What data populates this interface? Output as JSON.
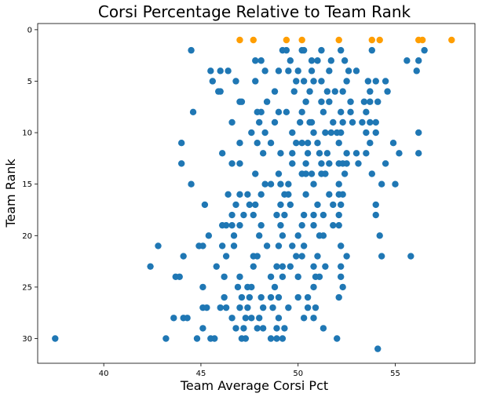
{
  "chart_data": {
    "type": "scatter",
    "title": "Corsi Percentage Relative to Team Rank",
    "xlabel": "Team Average Corsi Pct",
    "ylabel": "Team Rank",
    "xlim": [
      36.6,
      59.1
    ],
    "ylim": [
      -0.6,
      32.4
    ],
    "y_inverted": true,
    "xticks": [
      40,
      45,
      50,
      55
    ],
    "yticks": [
      0,
      5,
      10,
      15,
      20,
      25,
      30
    ],
    "grid": false,
    "legend": "none",
    "colors": {
      "rank_1": "#ff9e00",
      "others": "#1f77b4"
    },
    "series": [
      {
        "color": "#ff9e00",
        "points": [
          [
            47.0,
            1
          ],
          [
            47.7,
            1
          ],
          [
            49.4,
            1
          ],
          [
            50.2,
            1
          ],
          [
            52.1,
            1
          ],
          [
            53.8,
            1
          ],
          [
            54.2,
            1
          ],
          [
            56.2,
            1
          ],
          [
            56.4,
            1
          ],
          [
            57.9,
            1
          ]
        ]
      },
      {
        "color": "#1f77b4",
        "points": [
          [
            44.5,
            2
          ],
          [
            49.2,
            2
          ],
          [
            49.4,
            2
          ],
          [
            50.2,
            2
          ],
          [
            52.2,
            2
          ],
          [
            53.8,
            2
          ],
          [
            56.5,
            2
          ],
          [
            50.3,
            2
          ],
          [
            51.2,
            2
          ],
          [
            47.8,
            3
          ],
          [
            49.6,
            3
          ],
          [
            51.0,
            3
          ],
          [
            51.7,
            3
          ],
          [
            52.4,
            3
          ],
          [
            55.6,
            3
          ],
          [
            56.2,
            3
          ],
          [
            48.1,
            3
          ],
          [
            50.7,
            3
          ],
          [
            45.5,
            4
          ],
          [
            46.0,
            4
          ],
          [
            46.4,
            4
          ],
          [
            48.3,
            4
          ],
          [
            49.0,
            4
          ],
          [
            49.5,
            4
          ],
          [
            50.0,
            4
          ],
          [
            50.7,
            4
          ],
          [
            51.6,
            4
          ],
          [
            52.6,
            4
          ],
          [
            53.0,
            4
          ],
          [
            56.1,
            4
          ],
          [
            46.8,
            5
          ],
          [
            47.8,
            5
          ],
          [
            49.9,
            5
          ],
          [
            50.3,
            5
          ],
          [
            50.8,
            5
          ],
          [
            51.2,
            5
          ],
          [
            52.5,
            5
          ],
          [
            53.6,
            5
          ],
          [
            54.0,
            5
          ],
          [
            54.5,
            5
          ],
          [
            45.6,
            5
          ],
          [
            45.9,
            6
          ],
          [
            46.0,
            6
          ],
          [
            48.8,
            6
          ],
          [
            49.8,
            6
          ],
          [
            50.6,
            6
          ],
          [
            51.5,
            6
          ],
          [
            51.9,
            6
          ],
          [
            52.3,
            6
          ],
          [
            53.7,
            6
          ],
          [
            54.6,
            6
          ],
          [
            47.0,
            7
          ],
          [
            47.1,
            7
          ],
          [
            48.4,
            7
          ],
          [
            50.4,
            7
          ],
          [
            51.6,
            7
          ],
          [
            52.7,
            7
          ],
          [
            53.4,
            7
          ],
          [
            53.7,
            7
          ],
          [
            54.1,
            7
          ],
          [
            51.2,
            7
          ],
          [
            44.6,
            8
          ],
          [
            47.9,
            8
          ],
          [
            48.1,
            8
          ],
          [
            49.0,
            8
          ],
          [
            49.4,
            8
          ],
          [
            50.2,
            8
          ],
          [
            51.3,
            8
          ],
          [
            52.2,
            8
          ],
          [
            53.5,
            8
          ],
          [
            52.7,
            8
          ],
          [
            46.6,
            9
          ],
          [
            48.0,
            9
          ],
          [
            48.8,
            9
          ],
          [
            50.1,
            9
          ],
          [
            50.7,
            9
          ],
          [
            51.8,
            9
          ],
          [
            52.3,
            9
          ],
          [
            52.8,
            9
          ],
          [
            53.3,
            9
          ],
          [
            53.7,
            9
          ],
          [
            54.0,
            9
          ],
          [
            50.6,
            9
          ],
          [
            48.3,
            10
          ],
          [
            49.7,
            10
          ],
          [
            50.8,
            10
          ],
          [
            51.4,
            10
          ],
          [
            51.7,
            10
          ],
          [
            52.0,
            10
          ],
          [
            52.2,
            10
          ],
          [
            53.5,
            10
          ],
          [
            54.0,
            10
          ],
          [
            56.2,
            10
          ],
          [
            47.6,
            10
          ],
          [
            44.0,
            11
          ],
          [
            47.0,
            11
          ],
          [
            47.9,
            11
          ],
          [
            48.6,
            11
          ],
          [
            49.9,
            11
          ],
          [
            50.2,
            11
          ],
          [
            51.0,
            11
          ],
          [
            52.1,
            11
          ],
          [
            53.7,
            11
          ],
          [
            54.9,
            11
          ],
          [
            50.5,
            11
          ],
          [
            46.1,
            12
          ],
          [
            48.2,
            12
          ],
          [
            49.1,
            12
          ],
          [
            49.7,
            12
          ],
          [
            50.5,
            12
          ],
          [
            51.1,
            12
          ],
          [
            51.5,
            12
          ],
          [
            52.5,
            12
          ],
          [
            53.0,
            12
          ],
          [
            53.5,
            12
          ],
          [
            55.2,
            12
          ],
          [
            56.2,
            12
          ],
          [
            44.0,
            13
          ],
          [
            46.6,
            13
          ],
          [
            47.0,
            13
          ],
          [
            49.7,
            13
          ],
          [
            50.4,
            13
          ],
          [
            51.2,
            13
          ],
          [
            51.6,
            13
          ],
          [
            52.1,
            13
          ],
          [
            52.3,
            13
          ],
          [
            52.5,
            13
          ],
          [
            53.1,
            13
          ],
          [
            54.5,
            13
          ],
          [
            47.8,
            14
          ],
          [
            49.0,
            14
          ],
          [
            50.2,
            14
          ],
          [
            50.7,
            14
          ],
          [
            51.2,
            14
          ],
          [
            51.4,
            14
          ],
          [
            52.4,
            14
          ],
          [
            53.8,
            14
          ],
          [
            50.4,
            14
          ],
          [
            44.5,
            15
          ],
          [
            48.3,
            15
          ],
          [
            48.6,
            15
          ],
          [
            49.1,
            15
          ],
          [
            49.5,
            15
          ],
          [
            50.8,
            15
          ],
          [
            52.1,
            15
          ],
          [
            54.3,
            15
          ],
          [
            55.0,
            15
          ],
          [
            46.4,
            16
          ],
          [
            47.0,
            16
          ],
          [
            47.4,
            16
          ],
          [
            48.1,
            16
          ],
          [
            49.3,
            16
          ],
          [
            49.5,
            16
          ],
          [
            50.4,
            16
          ],
          [
            51.6,
            16
          ],
          [
            52.1,
            16
          ],
          [
            52.3,
            16
          ],
          [
            45.2,
            17
          ],
          [
            46.8,
            17
          ],
          [
            47.5,
            17
          ],
          [
            49.1,
            17
          ],
          [
            49.6,
            17
          ],
          [
            51.0,
            17
          ],
          [
            51.8,
            17
          ],
          [
            52.2,
            17
          ],
          [
            54.0,
            17
          ],
          [
            47.8,
            17
          ],
          [
            46.6,
            18
          ],
          [
            47.2,
            18
          ],
          [
            47.7,
            18
          ],
          [
            48.9,
            18
          ],
          [
            49.3,
            18
          ],
          [
            50.3,
            18
          ],
          [
            50.8,
            18
          ],
          [
            51.3,
            18
          ],
          [
            52.1,
            18
          ],
          [
            54.0,
            18
          ],
          [
            46.1,
            19
          ],
          [
            46.3,
            19
          ],
          [
            46.6,
            19
          ],
          [
            47.0,
            19
          ],
          [
            48.1,
            19
          ],
          [
            49.1,
            19
          ],
          [
            50.2,
            19
          ],
          [
            50.8,
            19
          ],
          [
            51.8,
            19
          ],
          [
            52.1,
            19
          ],
          [
            45.4,
            20
          ],
          [
            46.7,
            20
          ],
          [
            48.0,
            20
          ],
          [
            49.2,
            20
          ],
          [
            50.0,
            20
          ],
          [
            51.1,
            20
          ],
          [
            51.3,
            20
          ],
          [
            54.2,
            20
          ],
          [
            42.8,
            21
          ],
          [
            44.9,
            21
          ],
          [
            45.1,
            21
          ],
          [
            46.1,
            21
          ],
          [
            46.7,
            21
          ],
          [
            48.4,
            21
          ],
          [
            49.0,
            21
          ],
          [
            49.7,
            21
          ],
          [
            50.3,
            21
          ],
          [
            52.2,
            21
          ],
          [
            44.1,
            22
          ],
          [
            46.3,
            22
          ],
          [
            47.7,
            22
          ],
          [
            47.9,
            22
          ],
          [
            49.9,
            22
          ],
          [
            50.2,
            22
          ],
          [
            51.0,
            22
          ],
          [
            52.5,
            22
          ],
          [
            54.3,
            22
          ],
          [
            55.8,
            22
          ],
          [
            42.4,
            23
          ],
          [
            45.8,
            23
          ],
          [
            47.7,
            23
          ],
          [
            48.9,
            23
          ],
          [
            49.2,
            23
          ],
          [
            49.6,
            23
          ],
          [
            50.8,
            23
          ],
          [
            51.4,
            23
          ],
          [
            52.2,
            23
          ],
          [
            43.7,
            24
          ],
          [
            43.9,
            24
          ],
          [
            46.2,
            24
          ],
          [
            47.0,
            24
          ],
          [
            48.6,
            24
          ],
          [
            49.2,
            24
          ],
          [
            50.0,
            24
          ],
          [
            50.9,
            24
          ],
          [
            51.1,
            24
          ],
          [
            52.2,
            24
          ],
          [
            45.1,
            25
          ],
          [
            46.9,
            25
          ],
          [
            47.4,
            25
          ],
          [
            47.6,
            25
          ],
          [
            48.8,
            25
          ],
          [
            50.8,
            25
          ],
          [
            52.3,
            25
          ],
          [
            46.2,
            26
          ],
          [
            47.1,
            26
          ],
          [
            47.5,
            26
          ],
          [
            48.1,
            26
          ],
          [
            48.6,
            26
          ],
          [
            49.0,
            26
          ],
          [
            50.0,
            26
          ],
          [
            52.1,
            26
          ],
          [
            50.5,
            26
          ],
          [
            45.1,
            27
          ],
          [
            45.3,
            27
          ],
          [
            46.0,
            27
          ],
          [
            46.3,
            27
          ],
          [
            47.0,
            27
          ],
          [
            47.4,
            27
          ],
          [
            48.2,
            27
          ],
          [
            48.7,
            27
          ],
          [
            49.5,
            27
          ],
          [
            50.5,
            27
          ],
          [
            50.9,
            27
          ],
          [
            43.6,
            28
          ],
          [
            44.1,
            28
          ],
          [
            44.3,
            28
          ],
          [
            46.6,
            28
          ],
          [
            47.3,
            28
          ],
          [
            47.6,
            28
          ],
          [
            48.0,
            28
          ],
          [
            49.0,
            28
          ],
          [
            50.3,
            28
          ],
          [
            50.8,
            28
          ],
          [
            45.1,
            29
          ],
          [
            46.8,
            29
          ],
          [
            47.2,
            29
          ],
          [
            47.9,
            29
          ],
          [
            48.2,
            29
          ],
          [
            48.9,
            29
          ],
          [
            49.3,
            29
          ],
          [
            51.3,
            29
          ],
          [
            37.5,
            30
          ],
          [
            43.2,
            30
          ],
          [
            44.8,
            30
          ],
          [
            45.5,
            30
          ],
          [
            45.7,
            30
          ],
          [
            47.1,
            30
          ],
          [
            47.3,
            30
          ],
          [
            48.6,
            30
          ],
          [
            48.9,
            30
          ],
          [
            49.2,
            30
          ],
          [
            52.0,
            30
          ],
          [
            54.1,
            31
          ]
        ]
      }
    ]
  }
}
